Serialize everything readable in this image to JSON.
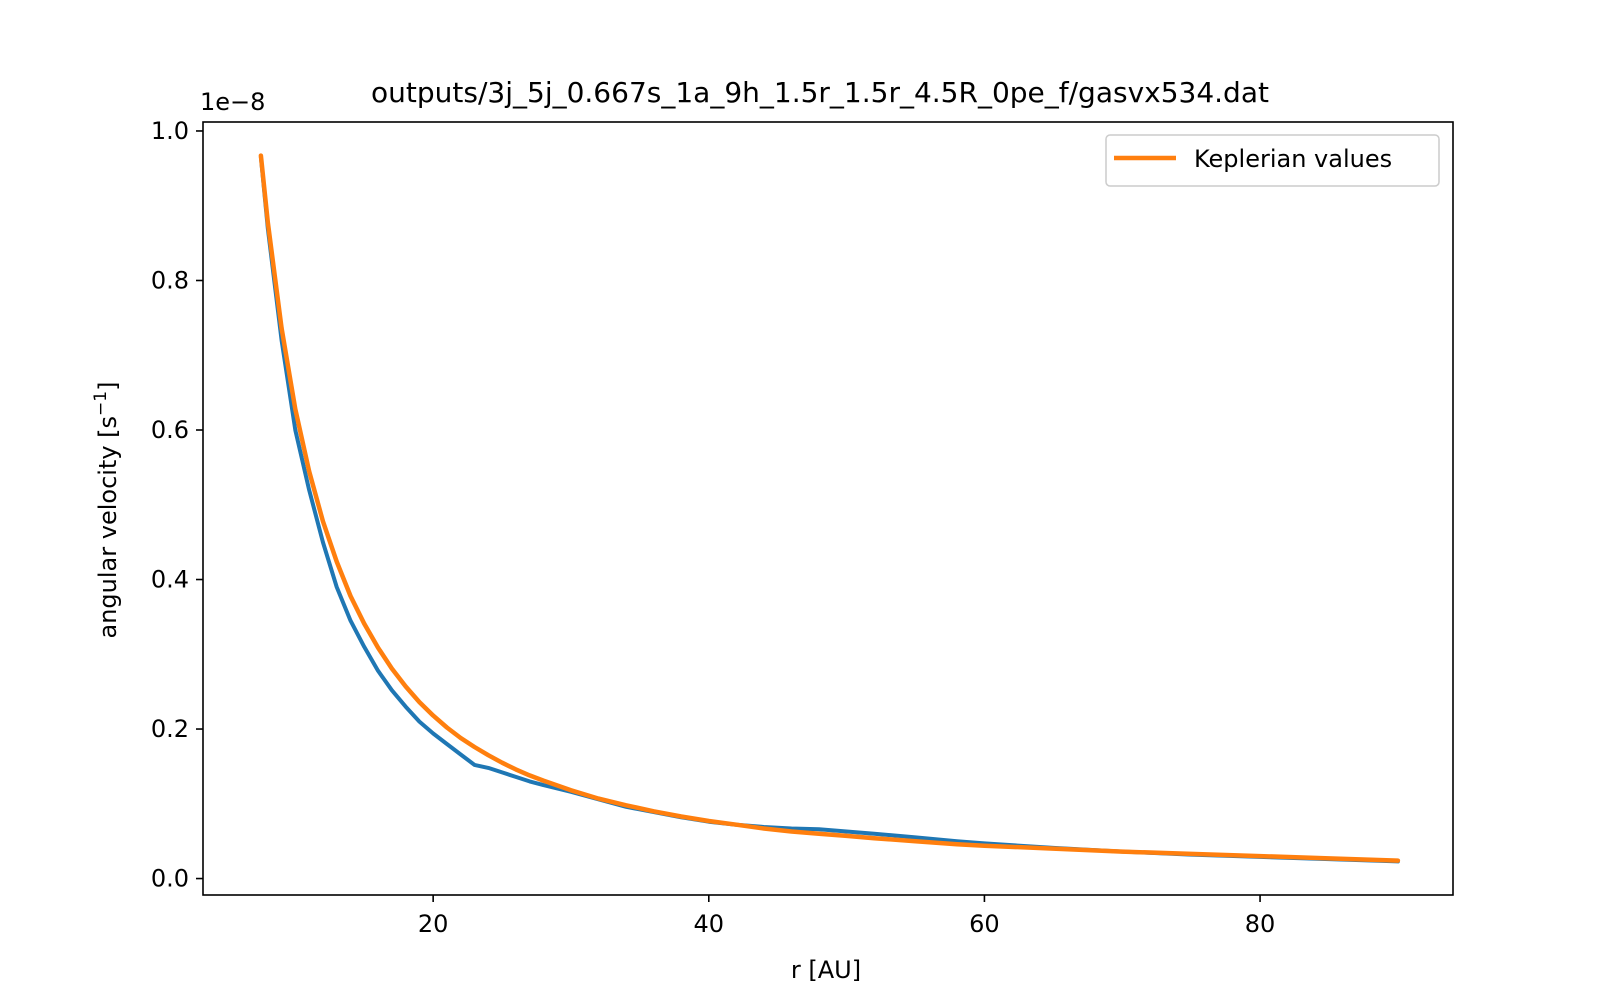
{
  "chart_data": {
    "type": "line",
    "title": "outputs/3j_5j_0.667s_1a_9h_1.5r_1.5r_4.5R_0pe_f/gasvx534.dat",
    "xlabel": "r [AU]",
    "ylabel_main": "angular velocity [s",
    "ylabel_sup": "−1",
    "ylabel_end": "]",
    "y_offset_label": "1e−8",
    "xlim": [
      3.3,
      94
    ],
    "ylim": [
      -0.022,
      1.012
    ],
    "x_ticks": [
      20,
      40,
      60,
      80
    ],
    "x_tick_labels": [
      "20",
      "40",
      "60",
      "80"
    ],
    "y_ticks": [
      0.0,
      0.2,
      0.4,
      0.6,
      0.8,
      1.0
    ],
    "y_tick_labels": [
      "0.0",
      "0.2",
      "0.4",
      "0.6",
      "0.8",
      "1.0"
    ],
    "grid": false,
    "legend_position": "top-right",
    "series": [
      {
        "color": "#1f77b4",
        "x": [
          7.5,
          8,
          9,
          10,
          11,
          12,
          13,
          14,
          15,
          16,
          17,
          18,
          19,
          20,
          21,
          22,
          23,
          24,
          25,
          26,
          27,
          28,
          30,
          32,
          34,
          36,
          38,
          40,
          42,
          44,
          46,
          48,
          50,
          52,
          55,
          58,
          60,
          65,
          70,
          75,
          80,
          85,
          90
        ],
        "y": [
          0.965,
          0.87,
          0.72,
          0.6,
          0.52,
          0.45,
          0.39,
          0.345,
          0.31,
          0.278,
          0.252,
          0.23,
          0.21,
          0.194,
          0.18,
          0.166,
          0.152,
          0.148,
          0.142,
          0.136,
          0.13,
          0.125,
          0.116,
          0.106,
          0.096,
          0.089,
          0.082,
          0.076,
          0.072,
          0.069,
          0.067,
          0.066,
          0.063,
          0.06,
          0.055,
          0.05,
          0.047,
          0.041,
          0.036,
          0.032,
          0.029,
          0.026,
          0.023
        ]
      },
      {
        "name": "Keplerian values",
        "color": "#ff7f0e",
        "x": [
          7.5,
          8,
          9,
          10,
          11,
          12,
          13,
          14,
          15,
          16,
          17,
          18,
          19,
          20,
          21,
          22,
          23,
          24,
          25,
          26,
          27,
          28,
          30,
          32,
          34,
          36,
          38,
          40,
          42,
          44,
          46,
          48,
          50,
          52,
          55,
          58,
          60,
          65,
          70,
          75,
          80,
          85,
          90
        ],
        "y": [
          0.967,
          0.878,
          0.736,
          0.628,
          0.545,
          0.478,
          0.424,
          0.378,
          0.341,
          0.309,
          0.281,
          0.257,
          0.236,
          0.218,
          0.202,
          0.188,
          0.176,
          0.165,
          0.155,
          0.146,
          0.138,
          0.131,
          0.118,
          0.107,
          0.098,
          0.09,
          0.083,
          0.077,
          0.072,
          0.067,
          0.063,
          0.06,
          0.057,
          0.054,
          0.05,
          0.046,
          0.044,
          0.04,
          0.036,
          0.033,
          0.03,
          0.027,
          0.024
        ]
      }
    ]
  }
}
